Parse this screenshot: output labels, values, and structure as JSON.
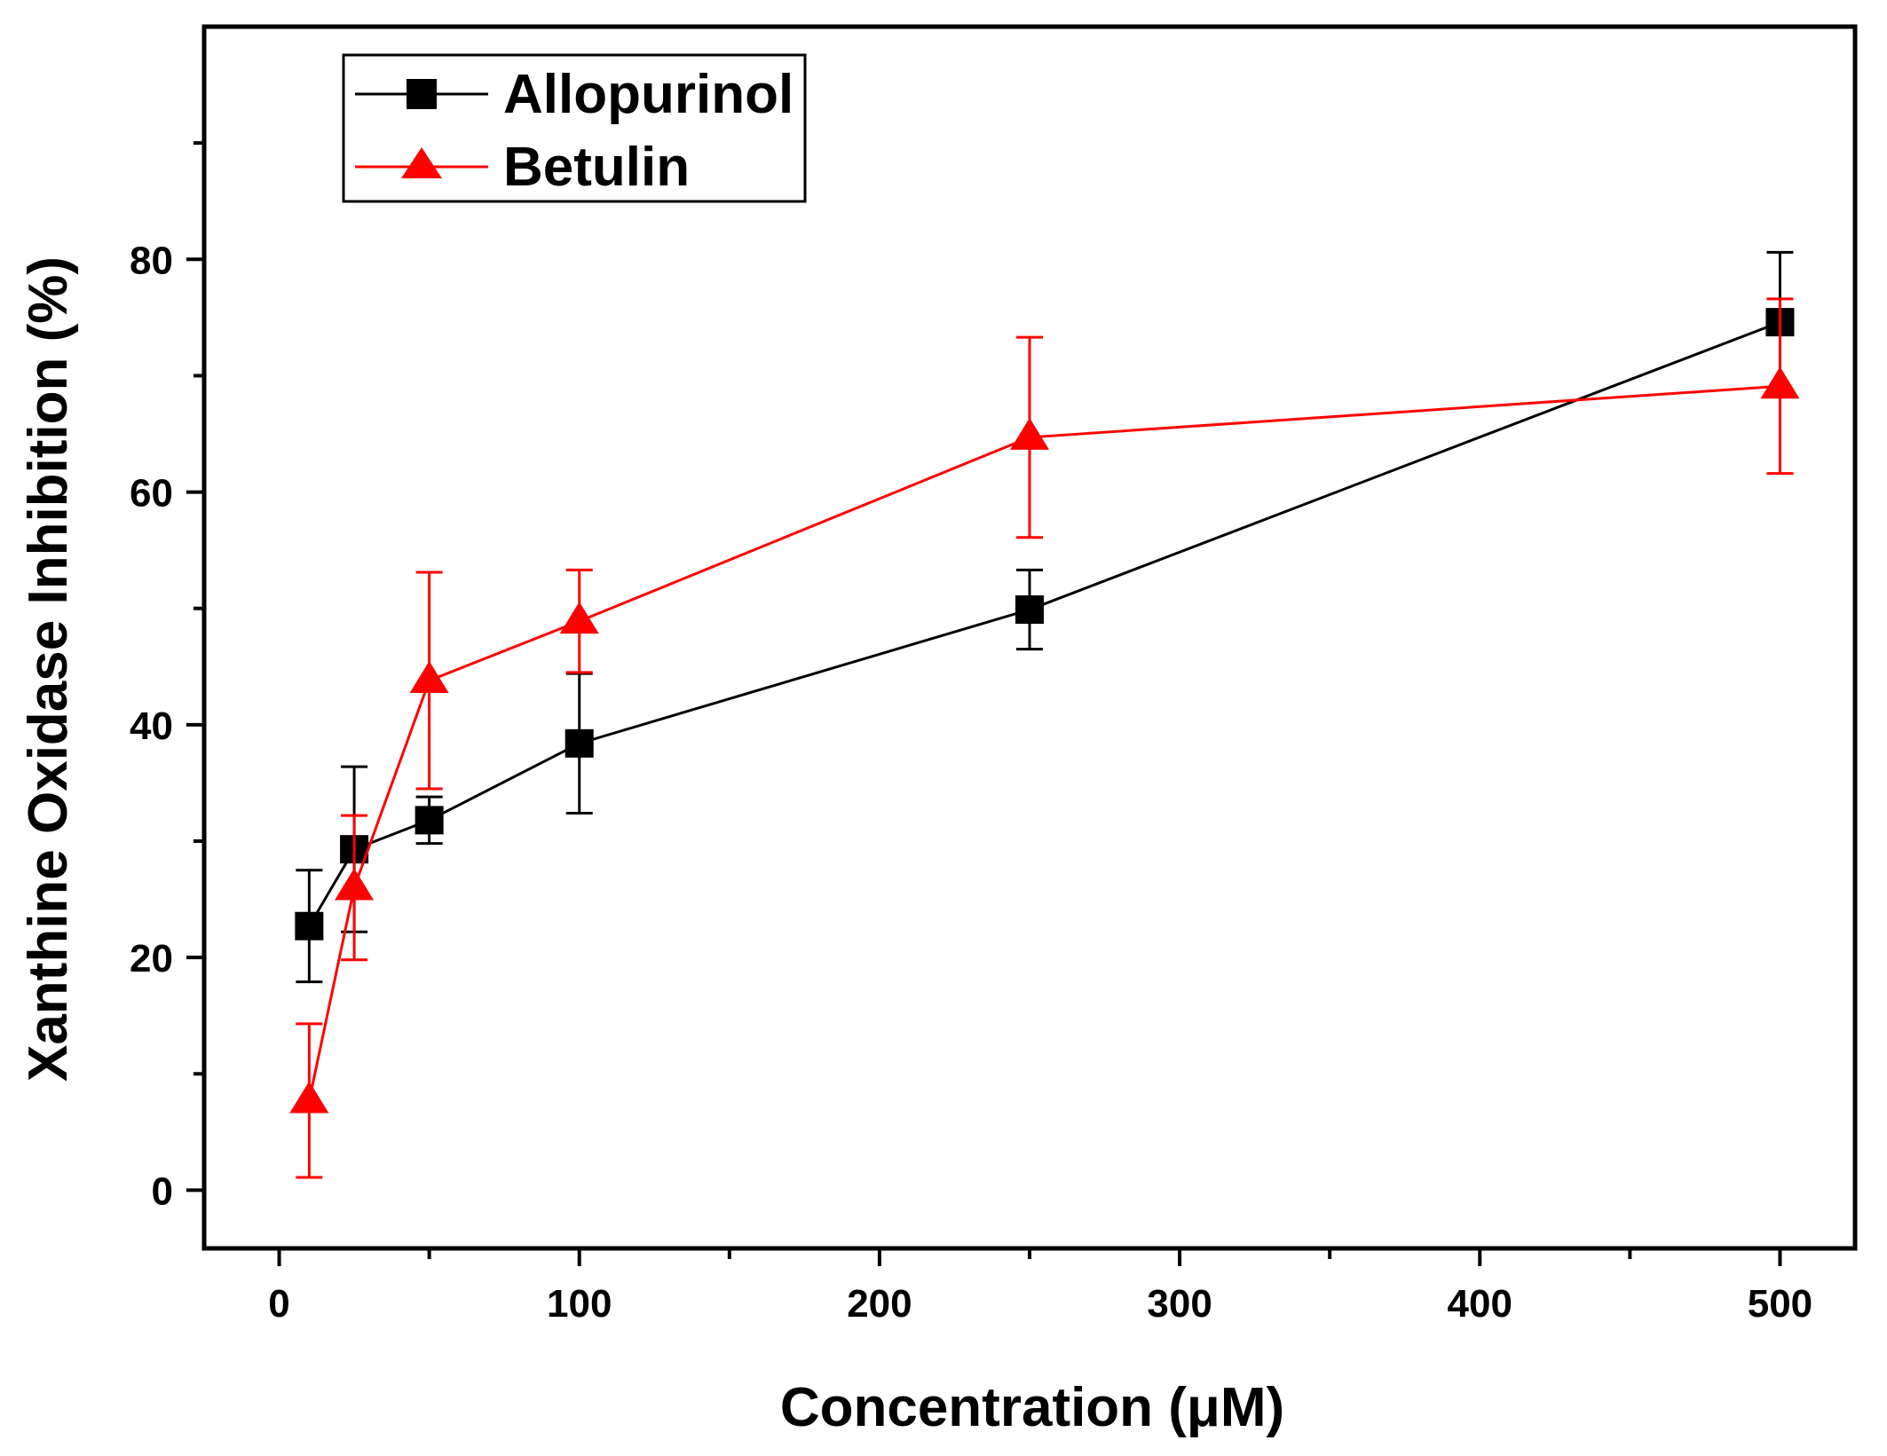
{
  "chart_data": {
    "type": "line",
    "xlabel": "Concentration (μM)",
    "ylabel": "Xanthine Oxidase Inhibition (%)",
    "xlim": [
      -25,
      525
    ],
    "ylim": [
      -5,
      100
    ],
    "x_ticks": [
      0,
      100,
      200,
      300,
      400,
      500
    ],
    "x_minor_ticks": [
      50,
      150,
      250,
      350,
      450
    ],
    "y_ticks": [
      0,
      20,
      40,
      60,
      80
    ],
    "y_minor_ticks": [
      10,
      30,
      50,
      70,
      90
    ],
    "legend_position": "top-left",
    "series": [
      {
        "name": "Allopurinol",
        "color": "#000000",
        "marker": "square",
        "x": [
          10,
          25,
          50,
          100,
          250,
          500
        ],
        "y": [
          22.7,
          29.3,
          31.8,
          38.4,
          49.9,
          74.6
        ],
        "err": [
          4.8,
          7.1,
          2.0,
          6.0,
          3.4,
          6.0
        ]
      },
      {
        "name": "Betulin",
        "color": "#ff0000",
        "marker": "triangle",
        "x": [
          10,
          25,
          50,
          100,
          250,
          500
        ],
        "y": [
          7.7,
          26.0,
          43.8,
          48.9,
          64.7,
          69.1
        ],
        "err": [
          6.6,
          6.2,
          9.3,
          4.4,
          8.6,
          7.5
        ]
      }
    ]
  }
}
